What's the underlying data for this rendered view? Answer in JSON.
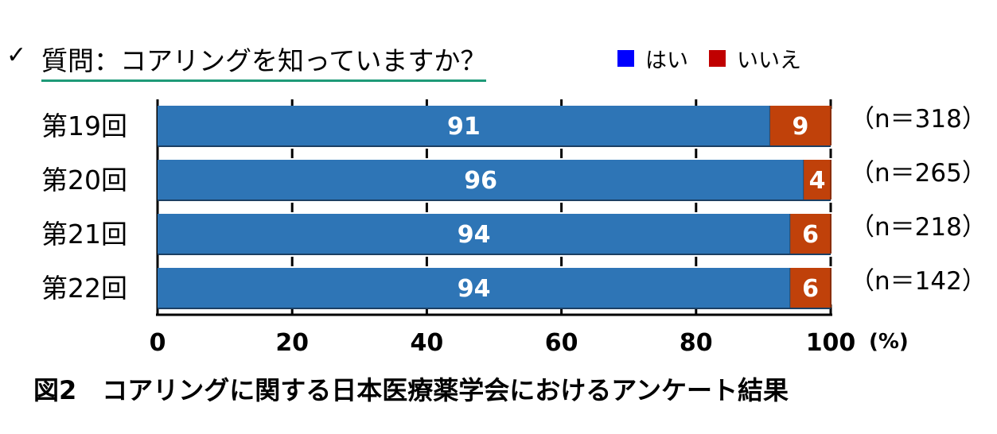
{
  "header": {
    "check_glyph": "✓",
    "question": "質問：コアリングを知っていますか？"
  },
  "legend": [
    {
      "label": "はい",
      "color": "#0000ff"
    },
    {
      "label": "いいえ",
      "color": "#c00000"
    }
  ],
  "chart_data": {
    "type": "bar",
    "orientation": "horizontal",
    "stacked": true,
    "categories": [
      "第19回",
      "第20回",
      "第21回",
      "第22回"
    ],
    "series": [
      {
        "name": "はい",
        "values": [
          91,
          96,
          94,
          94
        ],
        "color": "#2e75b6"
      },
      {
        "name": "いいえ",
        "values": [
          9,
          4,
          6,
          6
        ],
        "color": "#c0410a"
      }
    ],
    "sample_sizes": [
      "（n＝318）",
      "（n＝265）",
      "（n＝218）",
      "（n＝142）"
    ],
    "xlim": [
      0,
      100
    ],
    "xticks": [
      0,
      20,
      40,
      60,
      80,
      100
    ],
    "unit_label": "(%)",
    "legend_position": "top-right",
    "grid": false
  },
  "caption": "図2　コアリングに関する日本医療薬学会におけるアンケート結果"
}
